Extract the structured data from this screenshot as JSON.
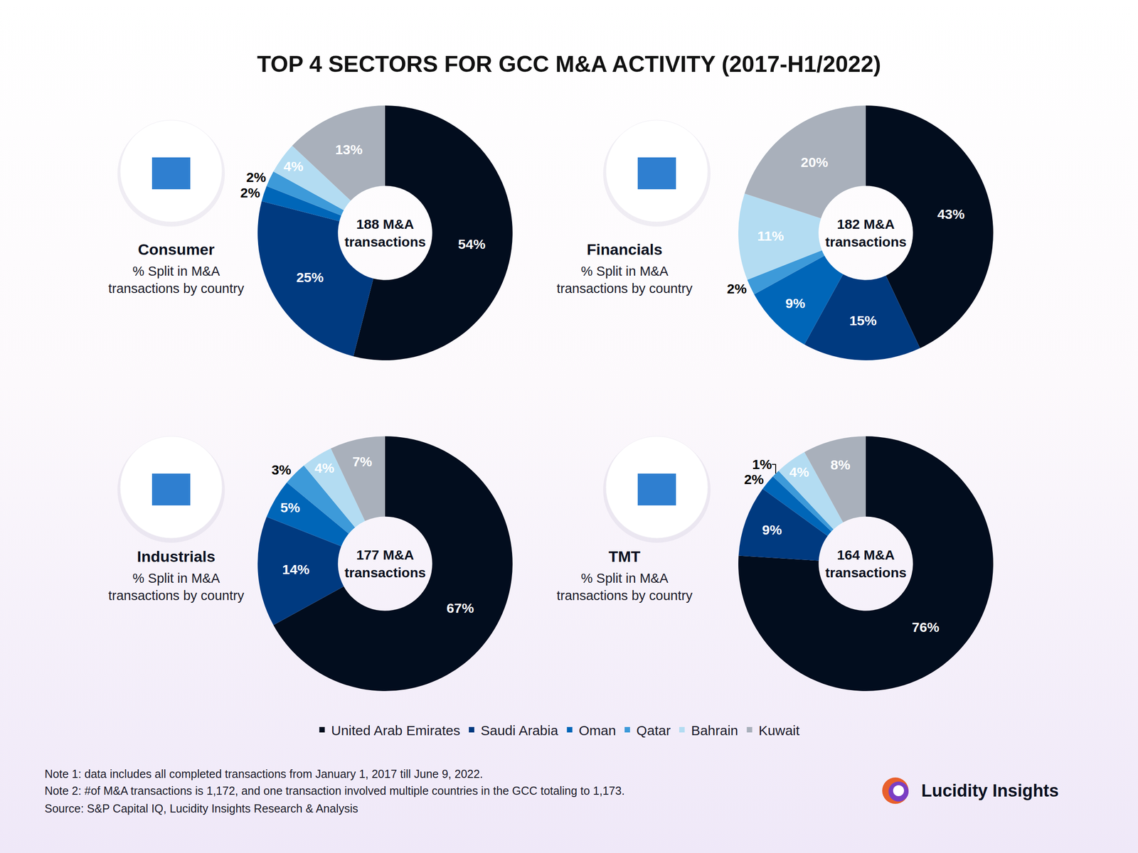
{
  "title": "TOP 4 SECTORS FOR GCC M&A ACTIVITY (2017-H1/2022)",
  "chart_data": [
    {
      "type": "pie",
      "title": "Consumer",
      "subtitle": "% Split in M&A transactions by country",
      "annotations": [
        "188 M&A transactions"
      ],
      "categories": [
        "United Arab Emirates",
        "Saudi Arabia",
        "Oman",
        "Qatar",
        "Bahrain",
        "Kuwait"
      ],
      "values": [
        54,
        25,
        2,
        2,
        4,
        13
      ],
      "value_labels": [
        "54%",
        "25%",
        "2%",
        "2%",
        "4%",
        "13%"
      ],
      "colors": [
        "#020d1e",
        "#003a80",
        "#0066b8",
        "#3d9ad9",
        "#b3dcf2",
        "#a9b0bb"
      ],
      "data_labels": true,
      "legend": "bottom"
    },
    {
      "type": "pie",
      "title": "Financials",
      "subtitle": "% Split in M&A transactions by country",
      "annotations": [
        "182 M&A transactions"
      ],
      "categories": [
        "United Arab Emirates",
        "Saudi Arabia",
        "Oman",
        "Qatar",
        "Bahrain",
        "Kuwait"
      ],
      "values": [
        43,
        15,
        9,
        2,
        11,
        20
      ],
      "value_labels": [
        "43%",
        "15%",
        "9%",
        "2%",
        "11%",
        "20%"
      ],
      "colors": [
        "#020d1e",
        "#003a80",
        "#0066b8",
        "#3d9ad9",
        "#b3dcf2",
        "#a9b0bb"
      ],
      "data_labels": true
    },
    {
      "type": "pie",
      "title": "Industrials",
      "subtitle": "% Split in M&A transactions by country",
      "annotations": [
        "177 M&A transactions"
      ],
      "categories": [
        "United Arab Emirates",
        "Saudi Arabia",
        "Oman",
        "Qatar",
        "Bahrain",
        "Kuwait"
      ],
      "values": [
        67,
        14,
        5,
        3,
        4,
        7
      ],
      "value_labels": [
        "67%",
        "14%",
        "5%",
        "3%",
        "4%",
        "7%"
      ],
      "colors": [
        "#020d1e",
        "#003a80",
        "#0066b8",
        "#3d9ad9",
        "#b3dcf2",
        "#a9b0bb"
      ],
      "data_labels": true
    },
    {
      "type": "pie",
      "title": "TMT",
      "subtitle": "% Split in M&A transactions by country",
      "annotations": [
        "164 M&A transactions"
      ],
      "categories": [
        "United Arab Emirates",
        "Saudi Arabia",
        "Oman",
        "Qatar",
        "Bahrain",
        "Kuwait"
      ],
      "values": [
        76,
        9,
        2,
        1,
        4,
        8
      ],
      "value_labels": [
        "76%",
        "9%",
        "2%",
        "1%",
        "4%",
        "8%"
      ],
      "colors": [
        "#020d1e",
        "#003a80",
        "#0066b8",
        "#3d9ad9",
        "#b3dcf2",
        "#a9b0bb"
      ],
      "data_labels": true
    }
  ],
  "notes": [
    "Note 1: data includes all completed transactions from January 1, 2017 till June 9, 2022.",
    "Note 2: #of M&A transactions is 1,172, and one transaction involved multiple countries in the GCC totaling to 1,173.",
    "Source: S&P Capital IQ, Lucidity Insights Research & Analysis"
  ],
  "brand": "Lucidity Insights"
}
